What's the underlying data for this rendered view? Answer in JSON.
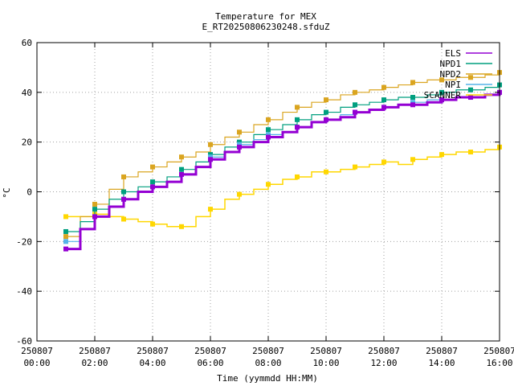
{
  "chart_data": {
    "type": "line",
    "title": "Temperature for MEX",
    "subtitle": "E_RT20250806230248.sfduZ",
    "xlabel": "Time (yymmdd HH:MM)",
    "ylabel": "°C",
    "xlim_hours": [
      0,
      16
    ],
    "ylim": [
      -60,
      60
    ],
    "grid": true,
    "legend_position": "top-right",
    "x_ticks": [
      {
        "hours": 0,
        "date": "250807",
        "time": "00:00"
      },
      {
        "hours": 2,
        "date": "250807",
        "time": "02:00"
      },
      {
        "hours": 4,
        "date": "250807",
        "time": "04:00"
      },
      {
        "hours": 6,
        "date": "250807",
        "time": "06:00"
      },
      {
        "hours": 8,
        "date": "250807",
        "time": "08:00"
      },
      {
        "hours": 10,
        "date": "250807",
        "time": "10:00"
      },
      {
        "hours": 12,
        "date": "250807",
        "time": "12:00"
      },
      {
        "hours": 14,
        "date": "250807",
        "time": "14:00"
      },
      {
        "hours": 16,
        "date": "250807",
        "time": "16:00"
      }
    ],
    "y_ticks": [
      60,
      40,
      20,
      0,
      -20,
      -40,
      -60
    ],
    "series": [
      {
        "name": "SCANNER",
        "color": "#ffd700",
        "x": [
          1.0,
          1.5,
          2.0,
          2.5,
          3.0,
          3.5,
          4.0,
          4.5,
          5.0,
          5.5,
          6.0,
          6.5,
          7.0,
          7.5,
          8.0,
          8.5,
          9.0,
          9.5,
          10.0,
          10.5,
          11.0,
          11.5,
          12.0,
          12.5,
          13.0,
          13.5,
          14.0,
          14.5,
          15.0,
          15.5,
          16.0
        ],
        "y": [
          -10,
          -10,
          -9,
          -10,
          -11,
          -12,
          -13,
          -14,
          -14,
          -10,
          -7,
          -3,
          -1,
          1,
          3,
          5,
          6,
          8,
          8,
          9,
          10,
          11,
          12,
          11,
          13,
          14,
          15,
          16,
          16,
          17,
          18
        ]
      },
      {
        "name": "NPD2",
        "color": "#daa520",
        "x": [
          1.0,
          1.5,
          2.0,
          2.5,
          3.0,
          3.5,
          4.0,
          4.5,
          5.0,
          5.5,
          6.0,
          6.5,
          7.0,
          7.5,
          8.0,
          8.5,
          9.0,
          9.5,
          10.0,
          10.5,
          11.0,
          11.5,
          12.0,
          12.5,
          13.0,
          13.5,
          14.0,
          14.5,
          15.0,
          15.5,
          16.0
        ],
        "y": [
          -18,
          -10,
          -5,
          1,
          6,
          8,
          10,
          12,
          14,
          16,
          19,
          22,
          24,
          27,
          29,
          32,
          34,
          36,
          37,
          39,
          40,
          41,
          42,
          43,
          44,
          45,
          45,
          46,
          46,
          47,
          48
        ]
      },
      {
        "name": "NPD1",
        "color": "#009f7f",
        "x": [
          1.0,
          1.5,
          2.0,
          2.5,
          3.0,
          3.5,
          4.0,
          4.5,
          5.0,
          5.5,
          6.0,
          6.5,
          7.0,
          7.5,
          8.0,
          8.5,
          9.0,
          9.5,
          10.0,
          10.5,
          11.0,
          11.5,
          12.0,
          12.5,
          13.0,
          13.5,
          14.0,
          14.5,
          15.0,
          15.5,
          16.0
        ],
        "y": [
          -16,
          -12,
          -7,
          -3,
          0,
          2,
          4,
          6,
          9,
          12,
          15,
          18,
          20,
          23,
          25,
          27,
          29,
          31,
          32,
          34,
          35,
          36,
          37,
          38,
          38,
          39,
          40,
          41,
          41,
          42,
          43
        ]
      },
      {
        "name": "NPI",
        "color": "#56b4e9",
        "x": [
          1.0,
          1.5,
          2.0,
          2.5,
          3.0,
          3.5,
          4.0,
          4.5,
          5.0,
          5.5,
          6.0,
          6.5,
          7.0,
          7.5,
          8.0,
          8.5,
          9.0,
          9.5,
          10.0,
          10.5,
          11.0,
          11.5,
          12.0,
          12.5,
          13.0,
          13.5,
          14.0,
          14.5,
          15.0,
          15.5,
          16.0
        ],
        "y": [
          -20,
          -15,
          -10,
          -6,
          -3,
          0,
          2,
          4,
          7,
          10,
          14,
          16,
          19,
          21,
          23,
          24,
          26,
          28,
          29,
          31,
          32,
          33,
          34,
          35,
          36,
          37,
          37,
          38,
          38,
          39,
          40
        ]
      },
      {
        "name": "ELS",
        "color": "#9400d3",
        "x": [
          1.0,
          1.5,
          2.0,
          2.5,
          3.0,
          3.5,
          4.0,
          4.5,
          5.0,
          5.5,
          6.0,
          6.5,
          7.0,
          7.5,
          8.0,
          8.5,
          9.0,
          9.5,
          10.0,
          10.5,
          11.0,
          11.5,
          12.0,
          12.5,
          13.0,
          13.5,
          14.0,
          14.5,
          15.0,
          15.5,
          16.0
        ],
        "y": [
          -23,
          -15,
          -10,
          -6,
          -3,
          0,
          2,
          4,
          7,
          10,
          13,
          16,
          18,
          20,
          22,
          24,
          26,
          28,
          29,
          30,
          32,
          33,
          34,
          35,
          35,
          36,
          37,
          38,
          38,
          39,
          40
        ]
      }
    ],
    "legend_order": [
      "ELS",
      "NPD1",
      "NPD2",
      "NPI",
      "SCANNER"
    ]
  }
}
